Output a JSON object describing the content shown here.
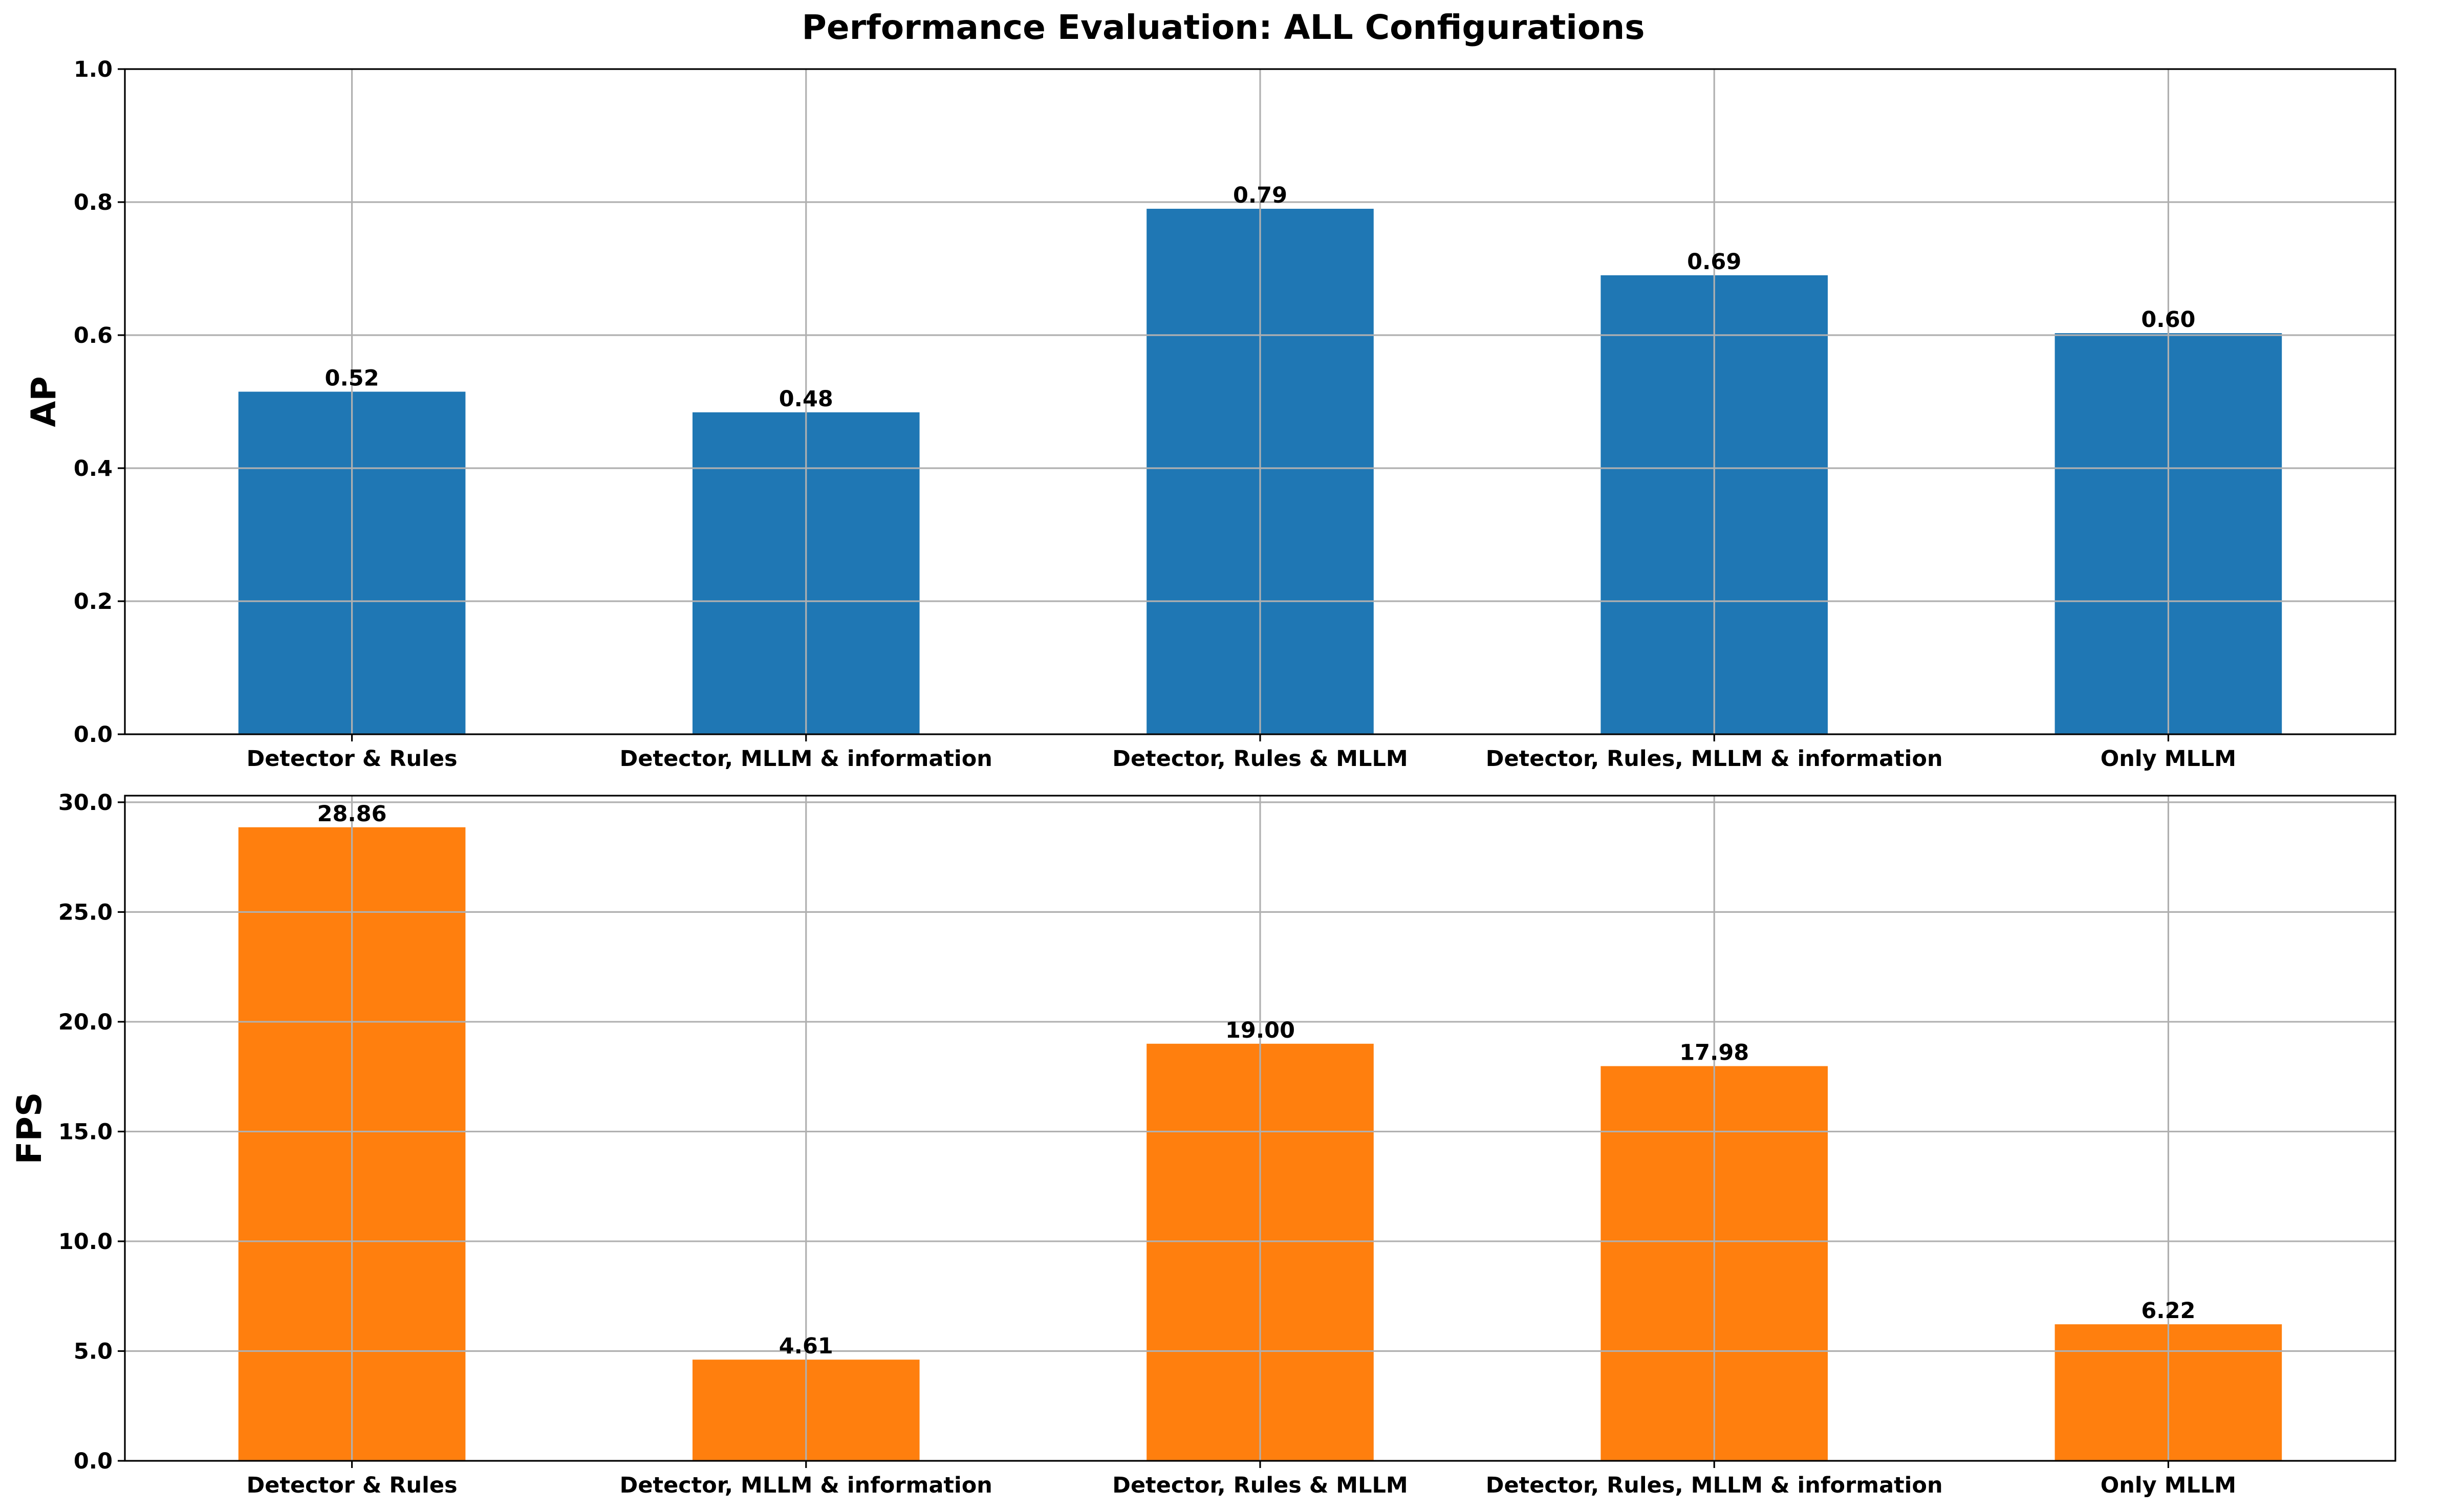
{
  "figure_title": "Performance Evaluation: ALL Configurations",
  "chart_data": [
    {
      "type": "bar",
      "title": "",
      "xlabel": "",
      "ylabel": "AP",
      "categories": [
        "Detector & Rules",
        "Detector, MLLM & information",
        "Detector, Rules & MLLM",
        "Detector, Rules, MLLM & information",
        "Only MLLM"
      ],
      "values": [
        0.515,
        0.484,
        0.79,
        0.69,
        0.603
      ],
      "data_labels": [
        "0.52",
        "0.48",
        "0.79",
        "0.69",
        "0.60"
      ],
      "ylim": [
        0,
        1.0
      ],
      "yticks": [
        "0.0",
        "0.2",
        "0.4",
        "0.6",
        "0.8",
        "1.0"
      ],
      "ytick_values": [
        0,
        0.2,
        0.4,
        0.6,
        0.8,
        1.0
      ],
      "color": "#1f77b4",
      "grid": true
    },
    {
      "type": "bar",
      "title": "",
      "xlabel": "",
      "ylabel": "FPS",
      "categories": [
        "Detector & Rules",
        "Detector, MLLM & information",
        "Detector, Rules & MLLM",
        "Detector, Rules, MLLM & information",
        "Only MLLM"
      ],
      "values": [
        28.86,
        4.61,
        19.0,
        17.98,
        6.22
      ],
      "data_labels": [
        "28.86",
        "4.61",
        "19.00",
        "17.98",
        "6.22"
      ],
      "ylim": [
        0,
        30.3
      ],
      "yticks": [
        "0.0",
        "5.0",
        "10.0",
        "15.0",
        "20.0",
        "25.0",
        "30.0"
      ],
      "ytick_values": [
        0,
        5,
        10,
        15,
        20,
        25,
        30
      ],
      "color": "#ff7f0e",
      "grid": true
    }
  ]
}
